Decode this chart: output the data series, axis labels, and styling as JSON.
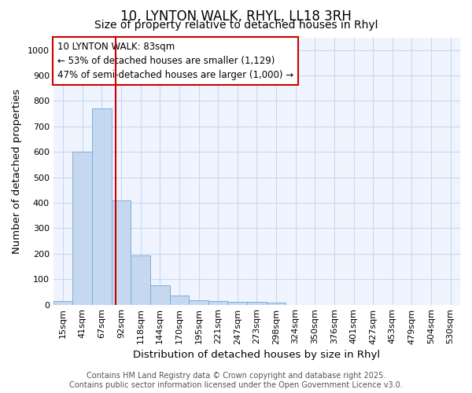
{
  "title": "10, LYNTON WALK, RHYL, LL18 3RH",
  "subtitle": "Size of property relative to detached houses in Rhyl",
  "xlabel": "Distribution of detached houses by size in Rhyl",
  "ylabel": "Number of detached properties",
  "categories": [
    "15sqm",
    "41sqm",
    "67sqm",
    "92sqm",
    "118sqm",
    "144sqm",
    "170sqm",
    "195sqm",
    "221sqm",
    "247sqm",
    "273sqm",
    "298sqm",
    "324sqm",
    "350sqm",
    "376sqm",
    "401sqm",
    "427sqm",
    "453sqm",
    "479sqm",
    "504sqm",
    "530sqm"
  ],
  "bar_heights": [
    13,
    600,
    770,
    410,
    193,
    75,
    37,
    18,
    13,
    12,
    12,
    7,
    0,
    0,
    0,
    0,
    0,
    0,
    0,
    0,
    0
  ],
  "bar_color": "#c5d8f0",
  "bar_edge_color": "#7ab0d8",
  "ylim": [
    0,
    1050
  ],
  "yticks": [
    0,
    100,
    200,
    300,
    400,
    500,
    600,
    700,
    800,
    900,
    1000
  ],
  "vline_x": 2.72,
  "vline_color": "#cc0000",
  "annotation_text": "10 LYNTON WALK: 83sqm\n← 53% of detached houses are smaller (1,129)\n47% of semi-detached houses are larger (1,000) →",
  "annotation_box_edge": "#cc0000",
  "footer_line1": "Contains HM Land Registry data © Crown copyright and database right 2025.",
  "footer_line2": "Contains public sector information licensed under the Open Government Licence v3.0.",
  "background_color": "#ffffff",
  "plot_bg_color": "#f0f4ff",
  "grid_color": "#c8d8f0",
  "title_fontsize": 12,
  "subtitle_fontsize": 10,
  "axis_fontsize": 9.5,
  "tick_fontsize": 8,
  "footer_fontsize": 7
}
